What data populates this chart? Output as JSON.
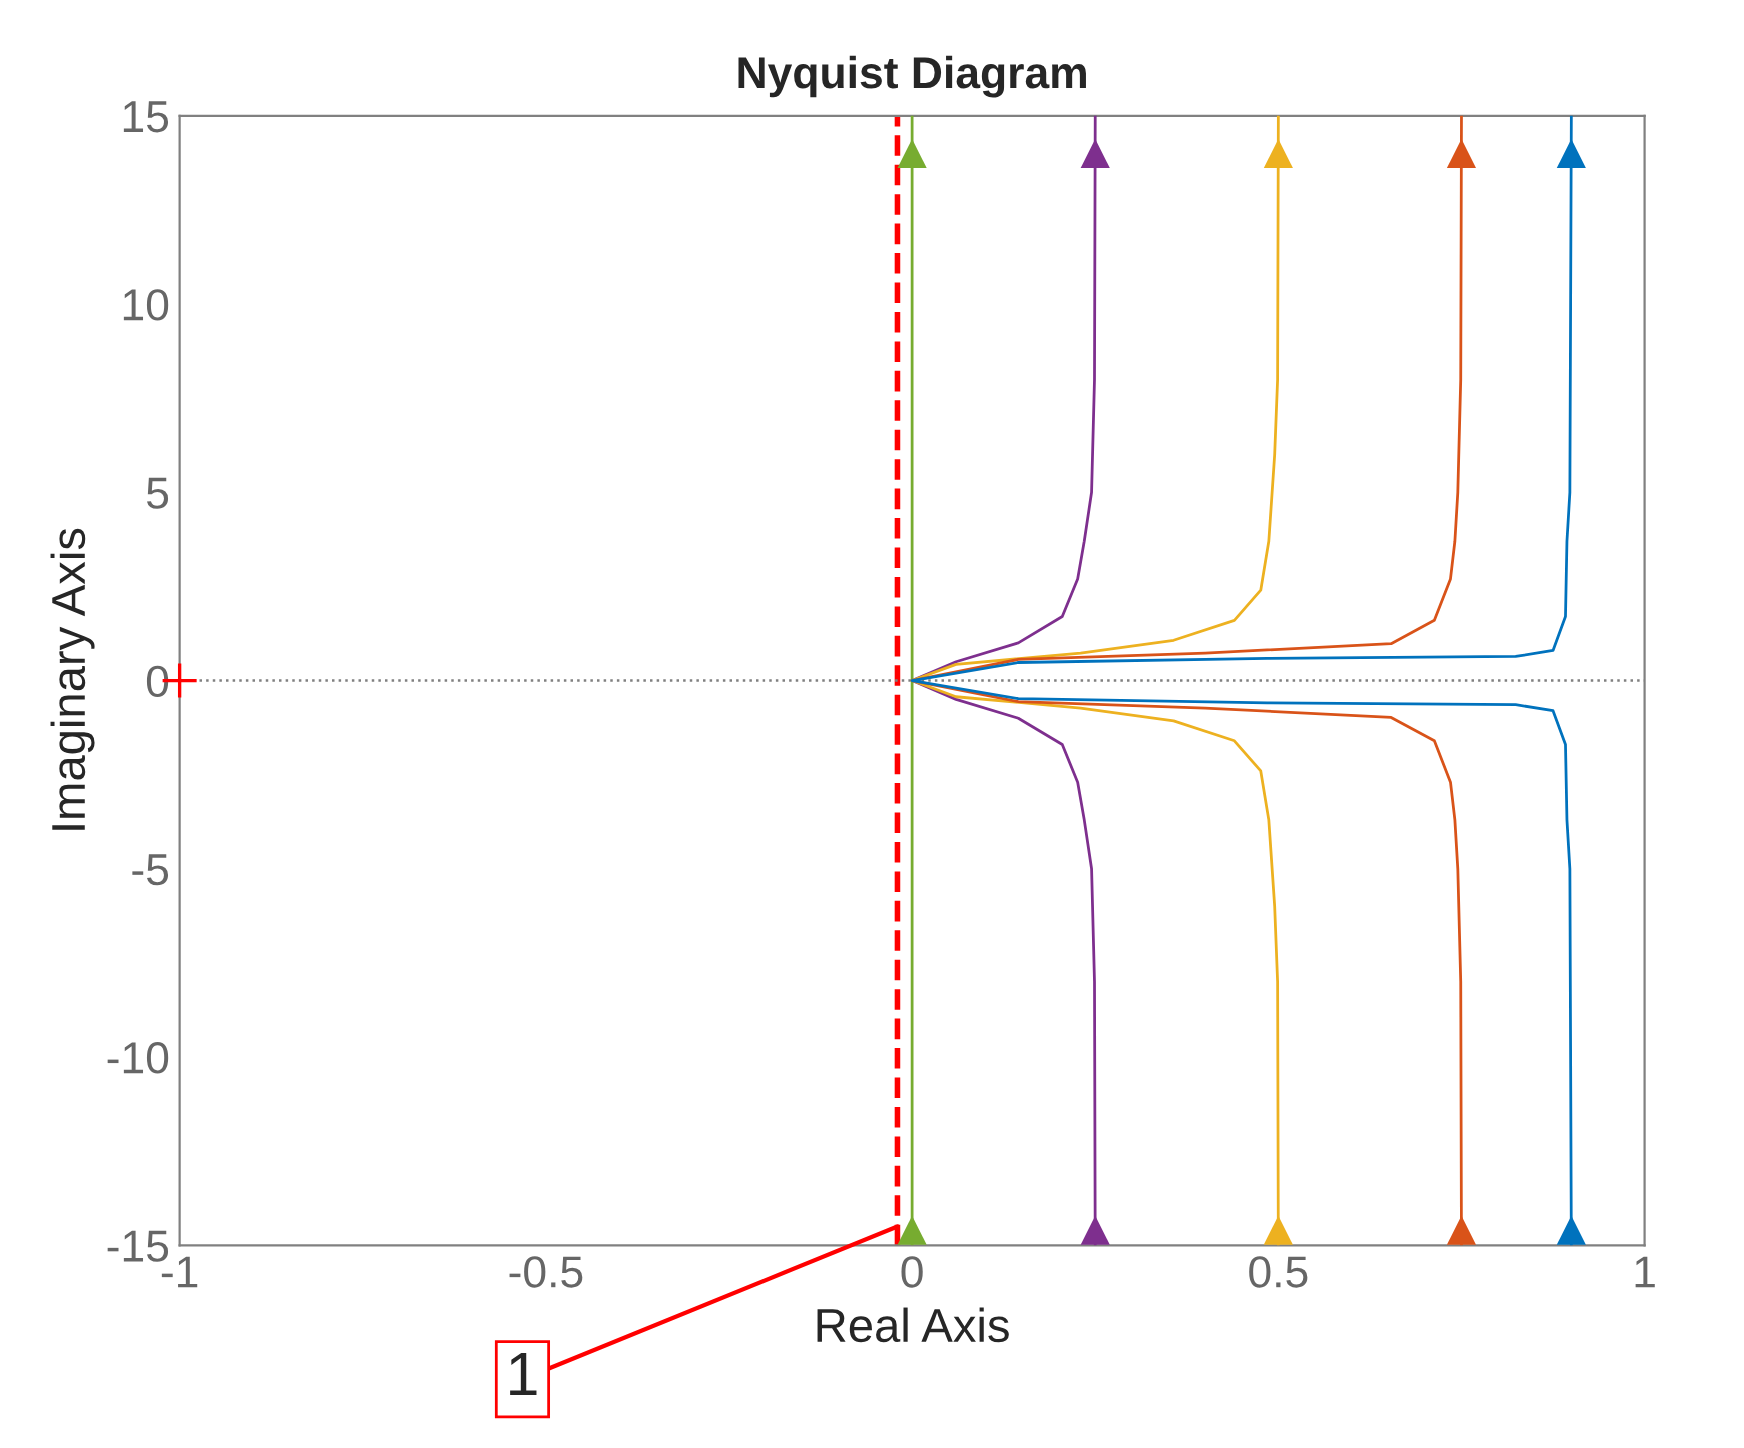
{
  "chart_data": {
    "type": "line",
    "title": "Nyquist Diagram",
    "xlabel": "Real Axis",
    "ylabel": "Imaginary Axis",
    "xlim": [
      -1,
      1
    ],
    "ylim": [
      -15,
      15
    ],
    "xticks": [
      -1,
      -0.5,
      0,
      0.5,
      1
    ],
    "yticks": [
      -15,
      -10,
      -5,
      0,
      5,
      10,
      15
    ],
    "grid": false,
    "legend": false,
    "line_style": "solid",
    "marker": "none",
    "series": [
      {
        "color": "#77ac30",
        "x": [
          0,
          0,
          0
        ],
        "values": [
          15,
          0,
          -15
        ]
      },
      {
        "color": "#7e2f8e",
        "x": [
          0.25,
          0.249,
          0.245,
          0.235,
          0.226,
          0.205,
          0.145,
          0.06,
          0,
          0.06,
          0.145,
          0.205,
          0.226,
          0.235,
          0.245,
          0.249,
          0.25
        ],
        "values": [
          15,
          8,
          5,
          3.7,
          2.7,
          1.7,
          1.0,
          0.5,
          0,
          -0.5,
          -1.0,
          -1.7,
          -2.7,
          -3.7,
          -5,
          -8,
          -15
        ]
      },
      {
        "color": "#edb120",
        "x": [
          0.5,
          0.499,
          0.495,
          0.487,
          0.476,
          0.44,
          0.357,
          0.23,
          0.06,
          0,
          0.06,
          0.23,
          0.357,
          0.44,
          0.476,
          0.487,
          0.495,
          0.499,
          0.5
        ],
        "values": [
          15,
          8,
          6,
          3.7,
          2.4,
          1.6,
          1.07,
          0.73,
          0.43,
          0,
          -0.43,
          -0.73,
          -1.07,
          -1.6,
          -2.4,
          -3.7,
          -6,
          -8,
          -15
        ]
      },
      {
        "color": "#d95319",
        "x": [
          0.75,
          0.749,
          0.745,
          0.741,
          0.735,
          0.713,
          0.654,
          0.4,
          0.145,
          0,
          0.145,
          0.4,
          0.654,
          0.713,
          0.735,
          0.741,
          0.745,
          0.749,
          0.75
        ],
        "values": [
          15,
          8,
          5,
          3.7,
          2.7,
          1.6,
          0.98,
          0.73,
          0.56,
          0,
          -0.56,
          -0.73,
          -0.98,
          -1.6,
          -2.7,
          -3.7,
          -5,
          -8,
          -15
        ]
      },
      {
        "color": "#0072bd",
        "x": [
          0.9,
          0.898,
          0.894,
          0.892,
          0.875,
          0.824,
          0.485,
          0.145,
          0,
          0.145,
          0.485,
          0.824,
          0.875,
          0.892,
          0.894,
          0.898,
          0.9
        ],
        "values": [
          15,
          5,
          3.7,
          1.7,
          0.8,
          0.64,
          0.59,
          0.48,
          0,
          -0.48,
          -0.59,
          -0.64,
          -0.8,
          -1.7,
          -3.7,
          -5,
          -15
        ]
      },
      {
        "type": "scatter",
        "marker": "triangle",
        "x": [
          0,
          0.25,
          0.5,
          0.75,
          0.9,
          0,
          0.25,
          0.5,
          0.75,
          0.9
        ],
        "values": [
          14,
          14,
          14,
          14,
          14,
          -14.6,
          -14.6,
          -14.6,
          -14.6,
          -14.6
        ],
        "colors": [
          "#77ac30",
          "#7e2f8e",
          "#edb120",
          "#d95319",
          "#0072bd",
          "#77ac30",
          "#7e2f8e",
          "#edb120",
          "#d95319",
          "#0072bd"
        ]
      },
      {
        "type": "scatter",
        "marker": "cross",
        "color": "#ff0000",
        "x": [
          -1
        ],
        "values": [
          0
        ]
      }
    ],
    "ref_lines": [
      {
        "axis": "x",
        "value": -0.02,
        "color": "#ff0000",
        "line_style": "dashed"
      },
      {
        "axis": "y",
        "value": 0,
        "color": "#808080",
        "line_style": "dotted"
      }
    ],
    "annotations": [
      {
        "text": "1",
        "x": -0.02,
        "y": -14.5
      }
    ]
  }
}
